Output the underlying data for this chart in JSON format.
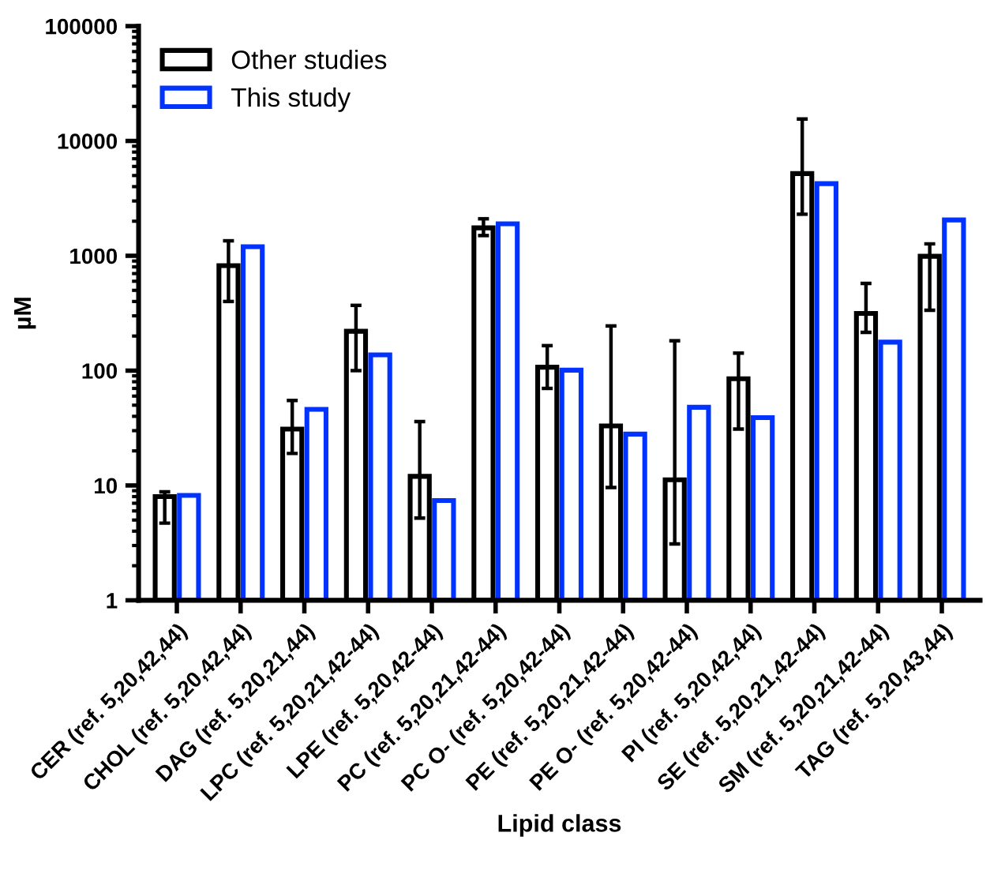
{
  "chart_data": {
    "type": "bar",
    "xlabel": "Lipid class",
    "ylabel": "µM",
    "log": "y",
    "categories": [
      "CER (ref. 5,20,42,44)",
      "CHOL (ref. 5,20,42,44)",
      "DAG (ref. 5,20,21,44)",
      "LPC (ref. 5,20,21,42-44)",
      "LPE (ref. 5,20,42-44)",
      "PC (ref. 5,20,21,42-44)",
      "PC O- (ref. 5,20,42-44)",
      "PE (ref. 5,20,21,42-44)",
      "PE O- (ref. 5,20,42-44)",
      "PI (ref. 5,20,42,44)",
      "SE (ref. 5,20,21,42-44)",
      "SM (ref. 5,20,21,42-44)",
      "TAG (ref. 5,20,43,44)"
    ],
    "series": [
      {
        "name": "Other studies",
        "color": "#000000",
        "values": [
          8,
          820,
          31,
          220,
          12,
          1750,
          107,
          33,
          11.2,
          85,
          5200,
          315,
          990
        ],
        "errors": [
          [
            4.7,
            8.8
          ],
          [
            400,
            1350
          ],
          [
            19,
            55
          ],
          [
            100,
            370
          ],
          [
            5.2,
            36
          ],
          [
            1500,
            2100
          ],
          [
            70,
            165
          ],
          [
            9.6,
            245
          ],
          [
            3.1,
            182
          ],
          [
            31,
            142
          ],
          [
            2300,
            15500
          ],
          [
            215,
            575
          ],
          [
            335,
            1270
          ]
        ]
      },
      {
        "name": "This study",
        "color": "#0033ff",
        "values": [
          8.2,
          1200,
          46,
          137,
          7.4,
          1900,
          101,
          28,
          48,
          39,
          4250,
          177,
          2050
        ]
      }
    ],
    "ylim": [
      1,
      100000
    ],
    "yticks": [
      1,
      10,
      100,
      1000,
      10000,
      100000
    ],
    "legend": "top left"
  }
}
